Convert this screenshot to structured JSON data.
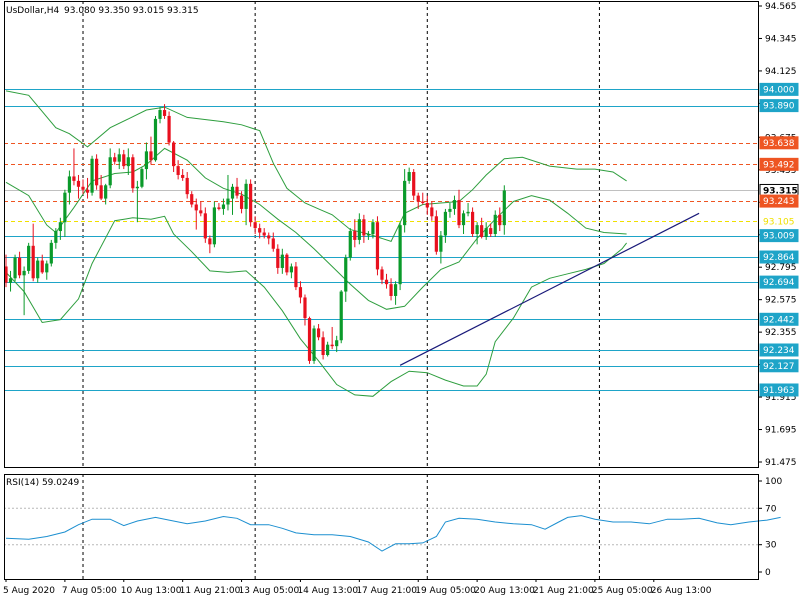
{
  "chart_data": {
    "type": "candlestick",
    "symbol_label": "UsDollar,H4",
    "ohlc_label": "93.080 93.350 93.015 93.315",
    "price_axis": {
      "min": 91.475,
      "max": 94.565,
      "ticks": [
        "94.565",
        "94.345",
        "94.125",
        "93.905",
        "93.675",
        "93.455",
        "93.235",
        "93.015",
        "92.795",
        "92.575",
        "92.355",
        "92.135",
        "91.915",
        "91.695",
        "91.475"
      ]
    },
    "time_axis": {
      "labels": [
        "5 Aug 2020",
        "7 Aug 05:00",
        "10 Aug 13:00",
        "11 Aug 21:00",
        "13 Aug 05:00",
        "14 Aug 13:00",
        "17 Aug 21:00",
        "19 Aug 05:00",
        "20 Aug 13:00",
        "21 Aug 21:00",
        "25 Aug 05:00",
        "26 Aug 13:00"
      ],
      "label_bars": [
        0,
        13,
        26,
        39,
        52,
        65,
        78,
        91,
        104,
        117,
        130,
        143
      ],
      "separator_bars": [
        17,
        55,
        93,
        131
      ]
    },
    "level_lines": [
      {
        "price": 94.0,
        "label": "94.000",
        "color": "#1ea4c8",
        "style": "solid"
      },
      {
        "price": 93.89,
        "label": "93.890",
        "color": "#1ea4c8",
        "style": "solid"
      },
      {
        "price": 93.638,
        "label": "93.638",
        "color": "#ee5522",
        "style": "dashed"
      },
      {
        "price": 93.492,
        "label": "93.492",
        "color": "#ee5522",
        "style": "dashed"
      },
      {
        "price": 93.315,
        "label": "93.315",
        "color": "#c0c0c0",
        "style": "solid",
        "current": true
      },
      {
        "price": 93.243,
        "label": "93.243",
        "color": "#ee5522",
        "style": "dashed"
      },
      {
        "price": 93.105,
        "label": "93.105",
        "color": "#f0e000",
        "style": "dashed"
      },
      {
        "price": 93.009,
        "label": "93.009",
        "color": "#1ea4c8",
        "style": "solid"
      },
      {
        "price": 92.864,
        "label": "92.864",
        "color": "#1ea4c8",
        "style": "solid"
      },
      {
        "price": 92.694,
        "label": "92.694",
        "color": "#1ea4c8",
        "style": "solid"
      },
      {
        "price": 92.442,
        "label": "92.442",
        "color": "#1ea4c8",
        "style": "solid"
      },
      {
        "price": 92.234,
        "label": "92.234",
        "color": "#1ea4c8",
        "style": "solid"
      },
      {
        "price": 92.127,
        "label": "92.127",
        "color": "#1ea4c8",
        "style": "solid"
      },
      {
        "price": 91.963,
        "label": "91.963",
        "color": "#1ea4c8",
        "style": "solid"
      }
    ],
    "trendline": {
      "from": {
        "bar": 87,
        "price": 92.13
      },
      "to": {
        "bar": 153,
        "price": 93.16
      },
      "color": "#1a1a7a"
    },
    "candles": [
      [
        92.8,
        92.88,
        92.66,
        92.69
      ],
      [
        92.69,
        92.77,
        92.63,
        92.72
      ],
      [
        92.72,
        92.88,
        92.7,
        92.86
      ],
      [
        92.86,
        92.9,
        92.72,
        92.74
      ],
      [
        92.74,
        92.8,
        92.47,
        92.77
      ],
      [
        92.77,
        92.96,
        92.75,
        92.94
      ],
      [
        92.94,
        93.09,
        92.7,
        92.72
      ],
      [
        92.72,
        92.86,
        92.69,
        92.84
      ],
      [
        92.84,
        92.88,
        92.75,
        92.76
      ],
      [
        92.76,
        92.84,
        92.71,
        92.82
      ],
      [
        92.82,
        92.98,
        92.8,
        92.96
      ],
      [
        92.96,
        93.06,
        92.92,
        93.04
      ],
      [
        93.04,
        93.13,
        92.98,
        93.1
      ],
      [
        93.1,
        93.32,
        93.0,
        93.3
      ],
      [
        93.3,
        93.45,
        93.22,
        93.41
      ],
      [
        93.41,
        93.6,
        93.35,
        93.38
      ],
      [
        93.38,
        93.42,
        93.26,
        93.34
      ],
      [
        93.34,
        93.39,
        93.29,
        93.32
      ],
      [
        93.32,
        93.4,
        93.26,
        93.3
      ],
      [
        93.3,
        93.55,
        93.28,
        93.53
      ],
      [
        93.53,
        93.56,
        93.32,
        93.35
      ],
      [
        93.35,
        93.42,
        93.25,
        93.26
      ],
      [
        93.26,
        93.36,
        93.22,
        93.35
      ],
      [
        93.35,
        93.6,
        93.33,
        93.54
      ],
      [
        93.54,
        93.57,
        93.49,
        93.51
      ],
      [
        93.51,
        93.6,
        93.46,
        93.56
      ],
      [
        93.56,
        93.59,
        93.46,
        93.48
      ],
      [
        93.48,
        93.6,
        93.42,
        93.54
      ],
      [
        93.54,
        93.56,
        93.3,
        93.33
      ],
      [
        93.33,
        93.38,
        93.1,
        93.34
      ],
      [
        93.34,
        93.47,
        93.33,
        93.46
      ],
      [
        93.46,
        93.64,
        93.39,
        93.58
      ],
      [
        93.58,
        93.68,
        93.49,
        93.52
      ],
      [
        93.52,
        93.82,
        93.51,
        93.8
      ],
      [
        93.8,
        93.88,
        93.77,
        93.86
      ],
      [
        93.86,
        93.9,
        93.8,
        93.82
      ],
      [
        93.82,
        93.85,
        93.62,
        93.64
      ],
      [
        93.64,
        93.65,
        93.44,
        93.48
      ],
      [
        93.48,
        93.52,
        93.39,
        93.42
      ],
      [
        93.42,
        93.46,
        93.38,
        93.4
      ],
      [
        93.4,
        93.44,
        93.26,
        93.29
      ],
      [
        93.29,
        93.31,
        93.2,
        93.22
      ],
      [
        93.22,
        93.26,
        93.05,
        93.18
      ],
      [
        93.18,
        93.24,
        93.14,
        93.16
      ],
      [
        93.16,
        93.2,
        92.96,
        92.99
      ],
      [
        92.99,
        93.01,
        92.89,
        92.95
      ],
      [
        92.95,
        93.24,
        92.93,
        93.2
      ],
      [
        93.2,
        93.23,
        93.18,
        93.19
      ],
      [
        93.19,
        93.26,
        93.15,
        93.22
      ],
      [
        93.22,
        93.42,
        93.18,
        93.26
      ],
      [
        93.26,
        93.36,
        93.15,
        93.34
      ],
      [
        93.34,
        93.4,
        93.26,
        93.28
      ],
      [
        93.28,
        93.31,
        93.16,
        93.19
      ],
      [
        93.19,
        93.39,
        93.08,
        93.36
      ],
      [
        93.36,
        93.39,
        93.07,
        93.1
      ],
      [
        93.1,
        93.14,
        93.02,
        93.06
      ],
      [
        93.06,
        93.09,
        92.99,
        93.03
      ],
      [
        93.03,
        93.06,
        92.99,
        93.01
      ],
      [
        93.01,
        93.03,
        92.95,
        92.99
      ],
      [
        92.99,
        93.03,
        92.9,
        92.92
      ],
      [
        92.92,
        92.95,
        92.75,
        92.79
      ],
      [
        92.79,
        92.92,
        92.75,
        92.88
      ],
      [
        92.88,
        92.89,
        92.74,
        92.76
      ],
      [
        92.76,
        92.82,
        92.72,
        92.8
      ],
      [
        92.8,
        92.83,
        92.64,
        92.66
      ],
      [
        92.66,
        92.7,
        92.55,
        92.59
      ],
      [
        92.59,
        92.61,
        92.4,
        92.45
      ],
      [
        92.45,
        92.46,
        92.14,
        92.16
      ],
      [
        92.16,
        92.4,
        92.14,
        92.38
      ],
      [
        92.38,
        92.41,
        92.3,
        92.32
      ],
      [
        92.32,
        92.36,
        92.17,
        92.2
      ],
      [
        92.2,
        92.29,
        92.19,
        92.27
      ],
      [
        92.27,
        92.39,
        92.24,
        92.26
      ],
      [
        92.26,
        92.33,
        92.22,
        92.3
      ],
      [
        92.3,
        92.64,
        92.28,
        92.63
      ],
      [
        92.63,
        92.88,
        92.56,
        92.86
      ],
      [
        92.86,
        93.06,
        92.84,
        93.04
      ],
      [
        93.04,
        93.12,
        92.93,
        92.98
      ],
      [
        92.98,
        93.16,
        92.95,
        93.12
      ],
      [
        93.12,
        93.15,
        92.96,
        93.01
      ],
      [
        93.01,
        93.04,
        92.98,
        93.02
      ],
      [
        93.02,
        93.12,
        92.99,
        93.1
      ],
      [
        93.1,
        93.14,
        92.74,
        92.78
      ],
      [
        92.78,
        92.8,
        92.68,
        92.71
      ],
      [
        92.71,
        92.75,
        92.65,
        92.68
      ],
      [
        92.68,
        92.72,
        92.57,
        92.6
      ],
      [
        92.6,
        92.7,
        92.54,
        92.68
      ],
      [
        92.68,
        93.1,
        92.64,
        93.08
      ],
      [
        93.08,
        93.46,
        93.03,
        93.38
      ],
      [
        93.38,
        93.47,
        93.36,
        93.44
      ],
      [
        93.44,
        93.46,
        93.25,
        93.28
      ],
      [
        93.28,
        93.3,
        93.19,
        93.24
      ],
      [
        93.24,
        93.3,
        93.22,
        93.23
      ],
      [
        93.23,
        93.28,
        93.15,
        93.2
      ],
      [
        93.2,
        93.24,
        93.11,
        93.14
      ],
      [
        93.14,
        93.18,
        92.88,
        92.9
      ],
      [
        92.9,
        93.04,
        92.82,
        93.01
      ],
      [
        93.01,
        93.19,
        92.96,
        93.17
      ],
      [
        93.17,
        93.23,
        93.13,
        93.19
      ],
      [
        93.19,
        93.28,
        93.15,
        93.25
      ],
      [
        93.25,
        93.32,
        93.06,
        93.08
      ],
      [
        93.08,
        93.18,
        93.02,
        93.16
      ],
      [
        93.16,
        93.23,
        93.14,
        93.17
      ],
      [
        93.17,
        93.2,
        93.0,
        93.02
      ],
      [
        93.02,
        93.1,
        92.95,
        93.08
      ],
      [
        93.08,
        93.13,
        92.99,
        93.0
      ],
      [
        93.0,
        93.1,
        92.98,
        93.06
      ],
      [
        93.06,
        93.09,
        93.0,
        93.02
      ],
      [
        93.02,
        93.18,
        93.0,
        93.15
      ],
      [
        93.15,
        93.2,
        93.04,
        93.08
      ],
      [
        93.08,
        93.35,
        93.015,
        93.315
      ]
    ],
    "bollinger": {
      "upper": [
        [
          0,
          93.99
        ],
        [
          5,
          93.96
        ],
        [
          11,
          93.74
        ],
        [
          14,
          93.7
        ],
        [
          18,
          93.61
        ],
        [
          23,
          93.74
        ],
        [
          27,
          93.8
        ],
        [
          31,
          93.86
        ],
        [
          35,
          93.88
        ],
        [
          40,
          93.81
        ],
        [
          48,
          93.78
        ],
        [
          52,
          93.76
        ],
        [
          56,
          93.72
        ],
        [
          59,
          93.5
        ],
        [
          62,
          93.33
        ],
        [
          66,
          93.23
        ],
        [
          69,
          93.19
        ],
        [
          72,
          93.15
        ],
        [
          76,
          93.05
        ],
        [
          80,
          93.02
        ],
        [
          85,
          92.97
        ],
        [
          88,
          93.16
        ],
        [
          92,
          93.22
        ],
        [
          96,
          93.23
        ],
        [
          100,
          93.24
        ],
        [
          103,
          93.32
        ],
        [
          106,
          93.42
        ],
        [
          110,
          93.53
        ],
        [
          114,
          93.54
        ],
        [
          120,
          93.48
        ],
        [
          126,
          93.46
        ],
        [
          130,
          93.46
        ],
        [
          134,
          93.44
        ],
        [
          137,
          93.38
        ]
      ],
      "middle": [
        [
          0,
          93.37
        ],
        [
          5,
          93.28
        ],
        [
          9,
          93.08
        ],
        [
          11,
          93.03
        ],
        [
          15,
          93.2
        ],
        [
          19,
          93.38
        ],
        [
          24,
          93.43
        ],
        [
          28,
          93.44
        ],
        [
          31,
          93.49
        ],
        [
          35,
          93.6
        ],
        [
          40,
          93.52
        ],
        [
          44,
          93.4
        ],
        [
          48,
          93.33
        ],
        [
          52,
          93.29
        ],
        [
          56,
          93.22
        ],
        [
          60,
          93.12
        ],
        [
          64,
          93.03
        ],
        [
          68,
          92.92
        ],
        [
          72,
          92.8
        ],
        [
          76,
          92.68
        ],
        [
          80,
          92.57
        ],
        [
          84,
          92.51
        ],
        [
          88,
          92.53
        ],
        [
          92,
          92.66
        ],
        [
          96,
          92.78
        ],
        [
          100,
          92.83
        ],
        [
          104,
          92.99
        ],
        [
          108,
          93.12
        ],
        [
          112,
          93.24
        ],
        [
          116,
          93.28
        ],
        [
          120,
          93.25
        ],
        [
          124,
          93.16
        ],
        [
          128,
          93.06
        ],
        [
          132,
          93.03
        ],
        [
          137,
          93.02
        ]
      ],
      "lower": [
        [
          0,
          92.76
        ],
        [
          4,
          92.63
        ],
        [
          8,
          92.42
        ],
        [
          12,
          92.44
        ],
        [
          16,
          92.58
        ],
        [
          19,
          92.82
        ],
        [
          24,
          93.11
        ],
        [
          28,
          93.13
        ],
        [
          32,
          93.12
        ],
        [
          35,
          93.14
        ],
        [
          37,
          93.02
        ],
        [
          41,
          92.9
        ],
        [
          45,
          92.77
        ],
        [
          49,
          92.76
        ],
        [
          53,
          92.77
        ],
        [
          57,
          92.66
        ],
        [
          61,
          92.5
        ],
        [
          65,
          92.31
        ],
        [
          69,
          92.16
        ],
        [
          73,
          92.0
        ],
        [
          77,
          91.93
        ],
        [
          81,
          91.92
        ],
        [
          85,
          92.02
        ],
        [
          89,
          92.09
        ],
        [
          93,
          92.08
        ],
        [
          97,
          92.03
        ],
        [
          101,
          91.99
        ],
        [
          104,
          91.99
        ],
        [
          106,
          92.07
        ],
        [
          108,
          92.29
        ],
        [
          112,
          92.45
        ],
        [
          116,
          92.66
        ],
        [
          120,
          92.72
        ],
        [
          124,
          92.75
        ],
        [
          128,
          92.78
        ],
        [
          132,
          92.82
        ],
        [
          136,
          92.92
        ],
        [
          137,
          92.96
        ]
      ]
    },
    "rsi": {
      "label": "RSI(14) 59.0249",
      "min": 0,
      "max": 100,
      "ticks": [
        "100",
        "70",
        "30",
        "0"
      ],
      "levels": [
        70,
        30
      ],
      "values": [
        [
          0,
          37
        ],
        [
          5,
          36
        ],
        [
          9,
          39
        ],
        [
          13,
          44
        ],
        [
          16,
          52
        ],
        [
          19,
          58
        ],
        [
          23,
          58
        ],
        [
          26,
          51
        ],
        [
          29,
          56
        ],
        [
          33,
          60
        ],
        [
          36,
          57
        ],
        [
          40,
          53
        ],
        [
          44,
          56
        ],
        [
          48,
          61
        ],
        [
          51,
          59
        ],
        [
          54,
          52
        ],
        [
          58,
          52
        ],
        [
          61,
          48
        ],
        [
          64,
          43
        ],
        [
          68,
          41
        ],
        [
          72,
          41
        ],
        [
          76,
          39
        ],
        [
          80,
          33
        ],
        [
          83,
          23
        ],
        [
          86,
          31
        ],
        [
          89,
          31
        ],
        [
          92,
          32
        ],
        [
          95,
          39
        ],
        [
          97,
          55
        ],
        [
          100,
          59
        ],
        [
          104,
          58
        ],
        [
          108,
          55
        ],
        [
          112,
          53
        ],
        [
          116,
          52
        ],
        [
          119,
          47
        ],
        [
          122,
          55
        ],
        [
          124,
          60
        ],
        [
          127,
          62
        ],
        [
          130,
          58
        ],
        [
          134,
          55
        ],
        [
          138,
          55
        ],
        [
          142,
          53
        ],
        [
          146,
          58
        ],
        [
          149,
          58
        ],
        [
          153,
          59
        ],
        [
          157,
          54
        ],
        [
          160,
          52
        ],
        [
          164,
          55
        ],
        [
          168,
          57
        ],
        [
          171,
          60
        ]
      ]
    }
  }
}
